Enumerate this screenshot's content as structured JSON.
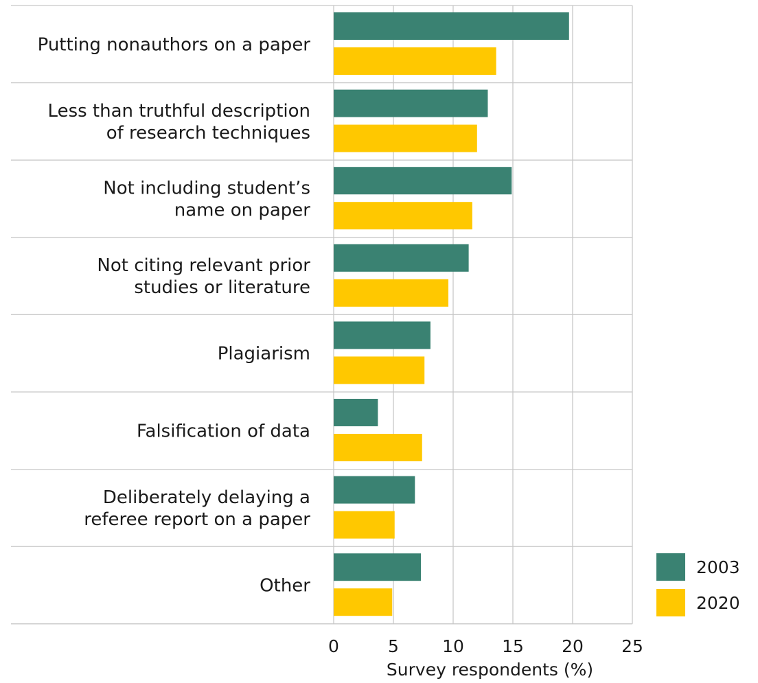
{
  "chart_data": {
    "type": "bar",
    "orientation": "horizontal",
    "categories": [
      [
        "Putting nonauthors on a paper"
      ],
      [
        "Less than truthful description",
        "of research techniques"
      ],
      [
        "Not including student’s",
        "name on paper"
      ],
      [
        "Not citing relevant prior",
        "studies or literature"
      ],
      [
        "Plagiarism"
      ],
      [
        "Falsification of data"
      ],
      [
        "Deliberately delaying a",
        "referee report on a paper"
      ],
      [
        "Other"
      ]
    ],
    "series": [
      {
        "name": "2003",
        "color": "#3a8272",
        "values": [
          19.7,
          12.9,
          14.9,
          11.3,
          8.1,
          3.7,
          6.8,
          7.3
        ]
      },
      {
        "name": "2020",
        "color": "#ffc800",
        "values": [
          13.6,
          12.0,
          11.6,
          9.6,
          7.6,
          7.4,
          5.1,
          4.9
        ]
      }
    ],
    "xlabel": "Survey respondents (%)",
    "xlim": [
      0,
      25
    ],
    "xticks": [
      "0",
      "5",
      "10",
      "15",
      "20",
      "25"
    ],
    "grid": true,
    "legend": "bottom-right"
  }
}
